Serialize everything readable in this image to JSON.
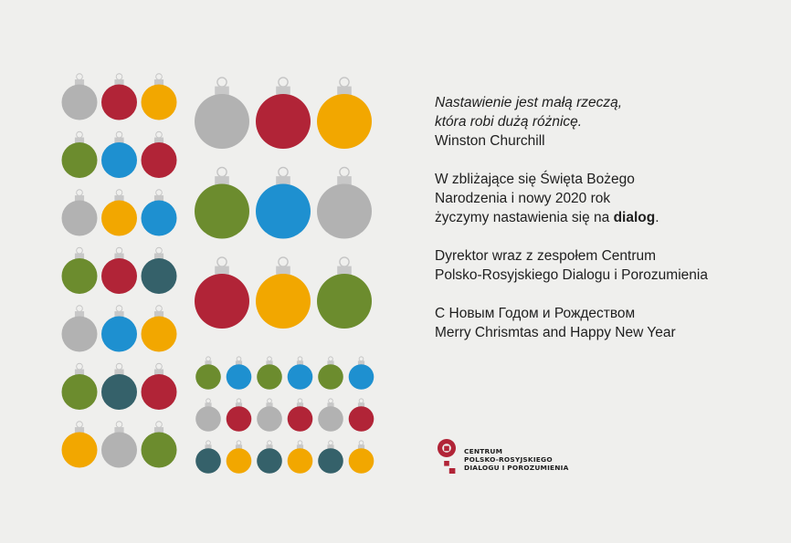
{
  "colors": {
    "gray": "#b2b2b2",
    "red": "#b12437",
    "orange": "#f2a700",
    "green": "#6c8c2e",
    "blue": "#1e90d0",
    "teal": "#35616a",
    "cap": "#c8c8c8",
    "hook": "#c4c4c4",
    "logo": "#b12437"
  },
  "ornaments": {
    "left_grid_rows": [
      [
        "gray",
        "red",
        "orange"
      ],
      [
        "green",
        "blue",
        "red"
      ],
      [
        "gray",
        "orange",
        "blue"
      ],
      [
        "green",
        "red",
        "teal"
      ],
      [
        "gray",
        "blue",
        "orange"
      ],
      [
        "green",
        "teal",
        "red"
      ],
      [
        "orange",
        "gray",
        "green"
      ]
    ],
    "large_grid_rows": [
      [
        "gray",
        "red",
        "orange"
      ],
      [
        "green",
        "blue",
        "gray"
      ],
      [
        "red",
        "orange",
        "green"
      ]
    ],
    "small_grid_rows": [
      [
        "green",
        "blue",
        "green",
        "blue",
        "green",
        "blue"
      ],
      [
        "gray",
        "red",
        "gray",
        "red",
        "gray",
        "red"
      ],
      [
        "teal",
        "orange",
        "teal",
        "orange",
        "teal",
        "orange"
      ]
    ]
  },
  "message": {
    "quote_line1": "Nastawienie jest małą rzeczą,",
    "quote_line2": "która robi dużą różnicę.",
    "author": "Winston Churchill",
    "wish_line1": "W zbliżające się Święta Bożego",
    "wish_line2": "Narodzenia i nowy 2020 rok",
    "wish_line3_pre": "życzymy nastawienia się na ",
    "wish_line3_bold": "dialog",
    "wish_line3_post": ".",
    "sign_line1": "Dyrektor wraz z zespołem Centrum",
    "sign_line2": "Polsko-Rosyjskiego Dialogu i Porozumienia",
    "ru_line": "С Новым Годом и Рождеством",
    "en_line": "Merry Chrismtas and Happy New Year"
  },
  "logo": {
    "line1": "CENTRUM",
    "line2": "POLSKO-ROSYJSKIEGO",
    "line3": "DIALOGU I POROZUMIENIA"
  }
}
